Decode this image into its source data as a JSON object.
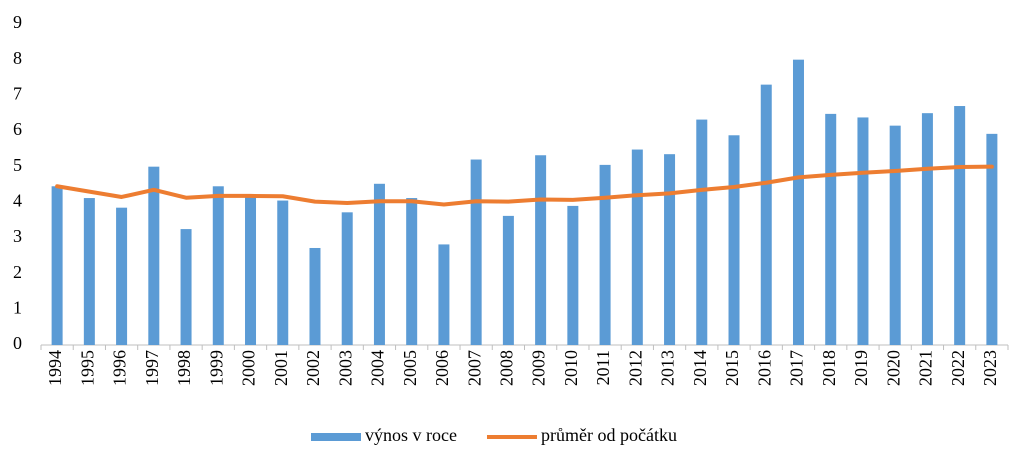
{
  "chart_data": {
    "type": "combo",
    "categories": [
      "1994",
      "1995",
      "1996",
      "1997",
      "1998",
      "1999",
      "2000",
      "2001",
      "2002",
      "2003",
      "2004",
      "2005",
      "2006",
      "2007",
      "2008",
      "2009",
      "2010",
      "2011",
      "2012",
      "2013",
      "2014",
      "2015",
      "2016",
      "2017",
      "2018",
      "2019",
      "2020",
      "2021",
      "2022",
      "2023"
    ],
    "series": [
      {
        "name": "výnos v roce",
        "type": "bar",
        "color": "#5b9bd5",
        "values": [
          4.45,
          4.12,
          3.85,
          5.0,
          3.25,
          4.45,
          4.2,
          4.05,
          2.72,
          3.72,
          4.52,
          4.12,
          2.82,
          5.2,
          3.62,
          5.32,
          3.9,
          5.05,
          5.48,
          5.35,
          6.32,
          5.88,
          7.3,
          8.0,
          6.48,
          6.38,
          6.15,
          6.5,
          6.7,
          5.92
        ]
      },
      {
        "name": "průměr od počátku",
        "type": "line",
        "color": "#ed7d31",
        "values": [
          4.45,
          4.3,
          4.15,
          4.35,
          4.13,
          4.18,
          4.18,
          4.17,
          4.02,
          3.98,
          4.03,
          4.03,
          3.94,
          4.03,
          4.02,
          4.08,
          4.07,
          4.13,
          4.2,
          4.25,
          4.35,
          4.43,
          4.55,
          4.7,
          4.77,
          4.83,
          4.88,
          4.94,
          4.99,
          5.0
        ]
      }
    ],
    "ylim": [
      0,
      9
    ],
    "yticks": [
      0,
      1,
      2,
      3,
      4,
      5,
      6,
      7,
      8,
      9
    ],
    "grid": false,
    "legend": "bottom"
  }
}
